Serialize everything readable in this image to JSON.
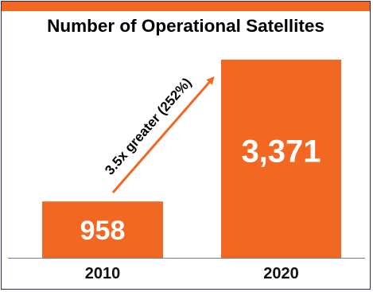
{
  "chart_data": {
    "type": "bar",
    "title": "Number of Operational Satellites",
    "categories": [
      "2010",
      "2020"
    ],
    "values": [
      958,
      3371
    ],
    "value_labels": [
      "958",
      "3,371"
    ],
    "ylim": [
      0,
      3371
    ],
    "grid": false,
    "legend": "none",
    "annotation": "3.5x greater (252%)",
    "colors": {
      "bar": "#f26722",
      "arrow": "#f26722",
      "frame": "#2b2b4f",
      "baseline": "#7a7a7a"
    }
  }
}
